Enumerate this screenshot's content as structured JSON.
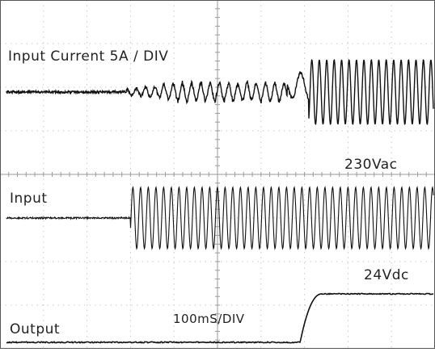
{
  "chart_data": {
    "type": "line",
    "title": "",
    "grid": true,
    "grid_divisions": {
      "x": 10,
      "y": 8
    },
    "time_base": "100mS/DIV",
    "annotations": [
      "Input Current 5A / DIV",
      "230Vac",
      "24Vdc",
      "100mS/DIV"
    ],
    "series": [
      {
        "name": "Input Current 5A / DIV",
        "segments": [
          {
            "x_div": [
              0.0,
              2.9
            ],
            "behavior": "flat near zero"
          },
          {
            "x_div": [
              2.9,
              6.6
            ],
            "behavior": "small inrush ripple"
          },
          {
            "x_div": [
              6.6,
              7.1
            ],
            "behavior": "transient"
          },
          {
            "x_div": [
              7.1,
              10.0
            ],
            "behavior": "steady ac current"
          }
        ]
      },
      {
        "name": "Input",
        "label": "230Vac",
        "segments": [
          {
            "x_div": [
              0.0,
              3.0
            ],
            "behavior": "off"
          },
          {
            "x_div": [
              3.0,
              10.0
            ],
            "behavior": "sine wave"
          }
        ]
      },
      {
        "name": "Output",
        "label": "24Vdc",
        "segments": [
          {
            "x_div": [
              0.0,
              6.9
            ],
            "behavior": "0 V"
          },
          {
            "x_div": [
              6.9,
              7.4
            ],
            "behavior": "rise"
          },
          {
            "x_div": [
              7.4,
              10.0
            ],
            "behavior": "24 V"
          }
        ]
      }
    ]
  }
}
